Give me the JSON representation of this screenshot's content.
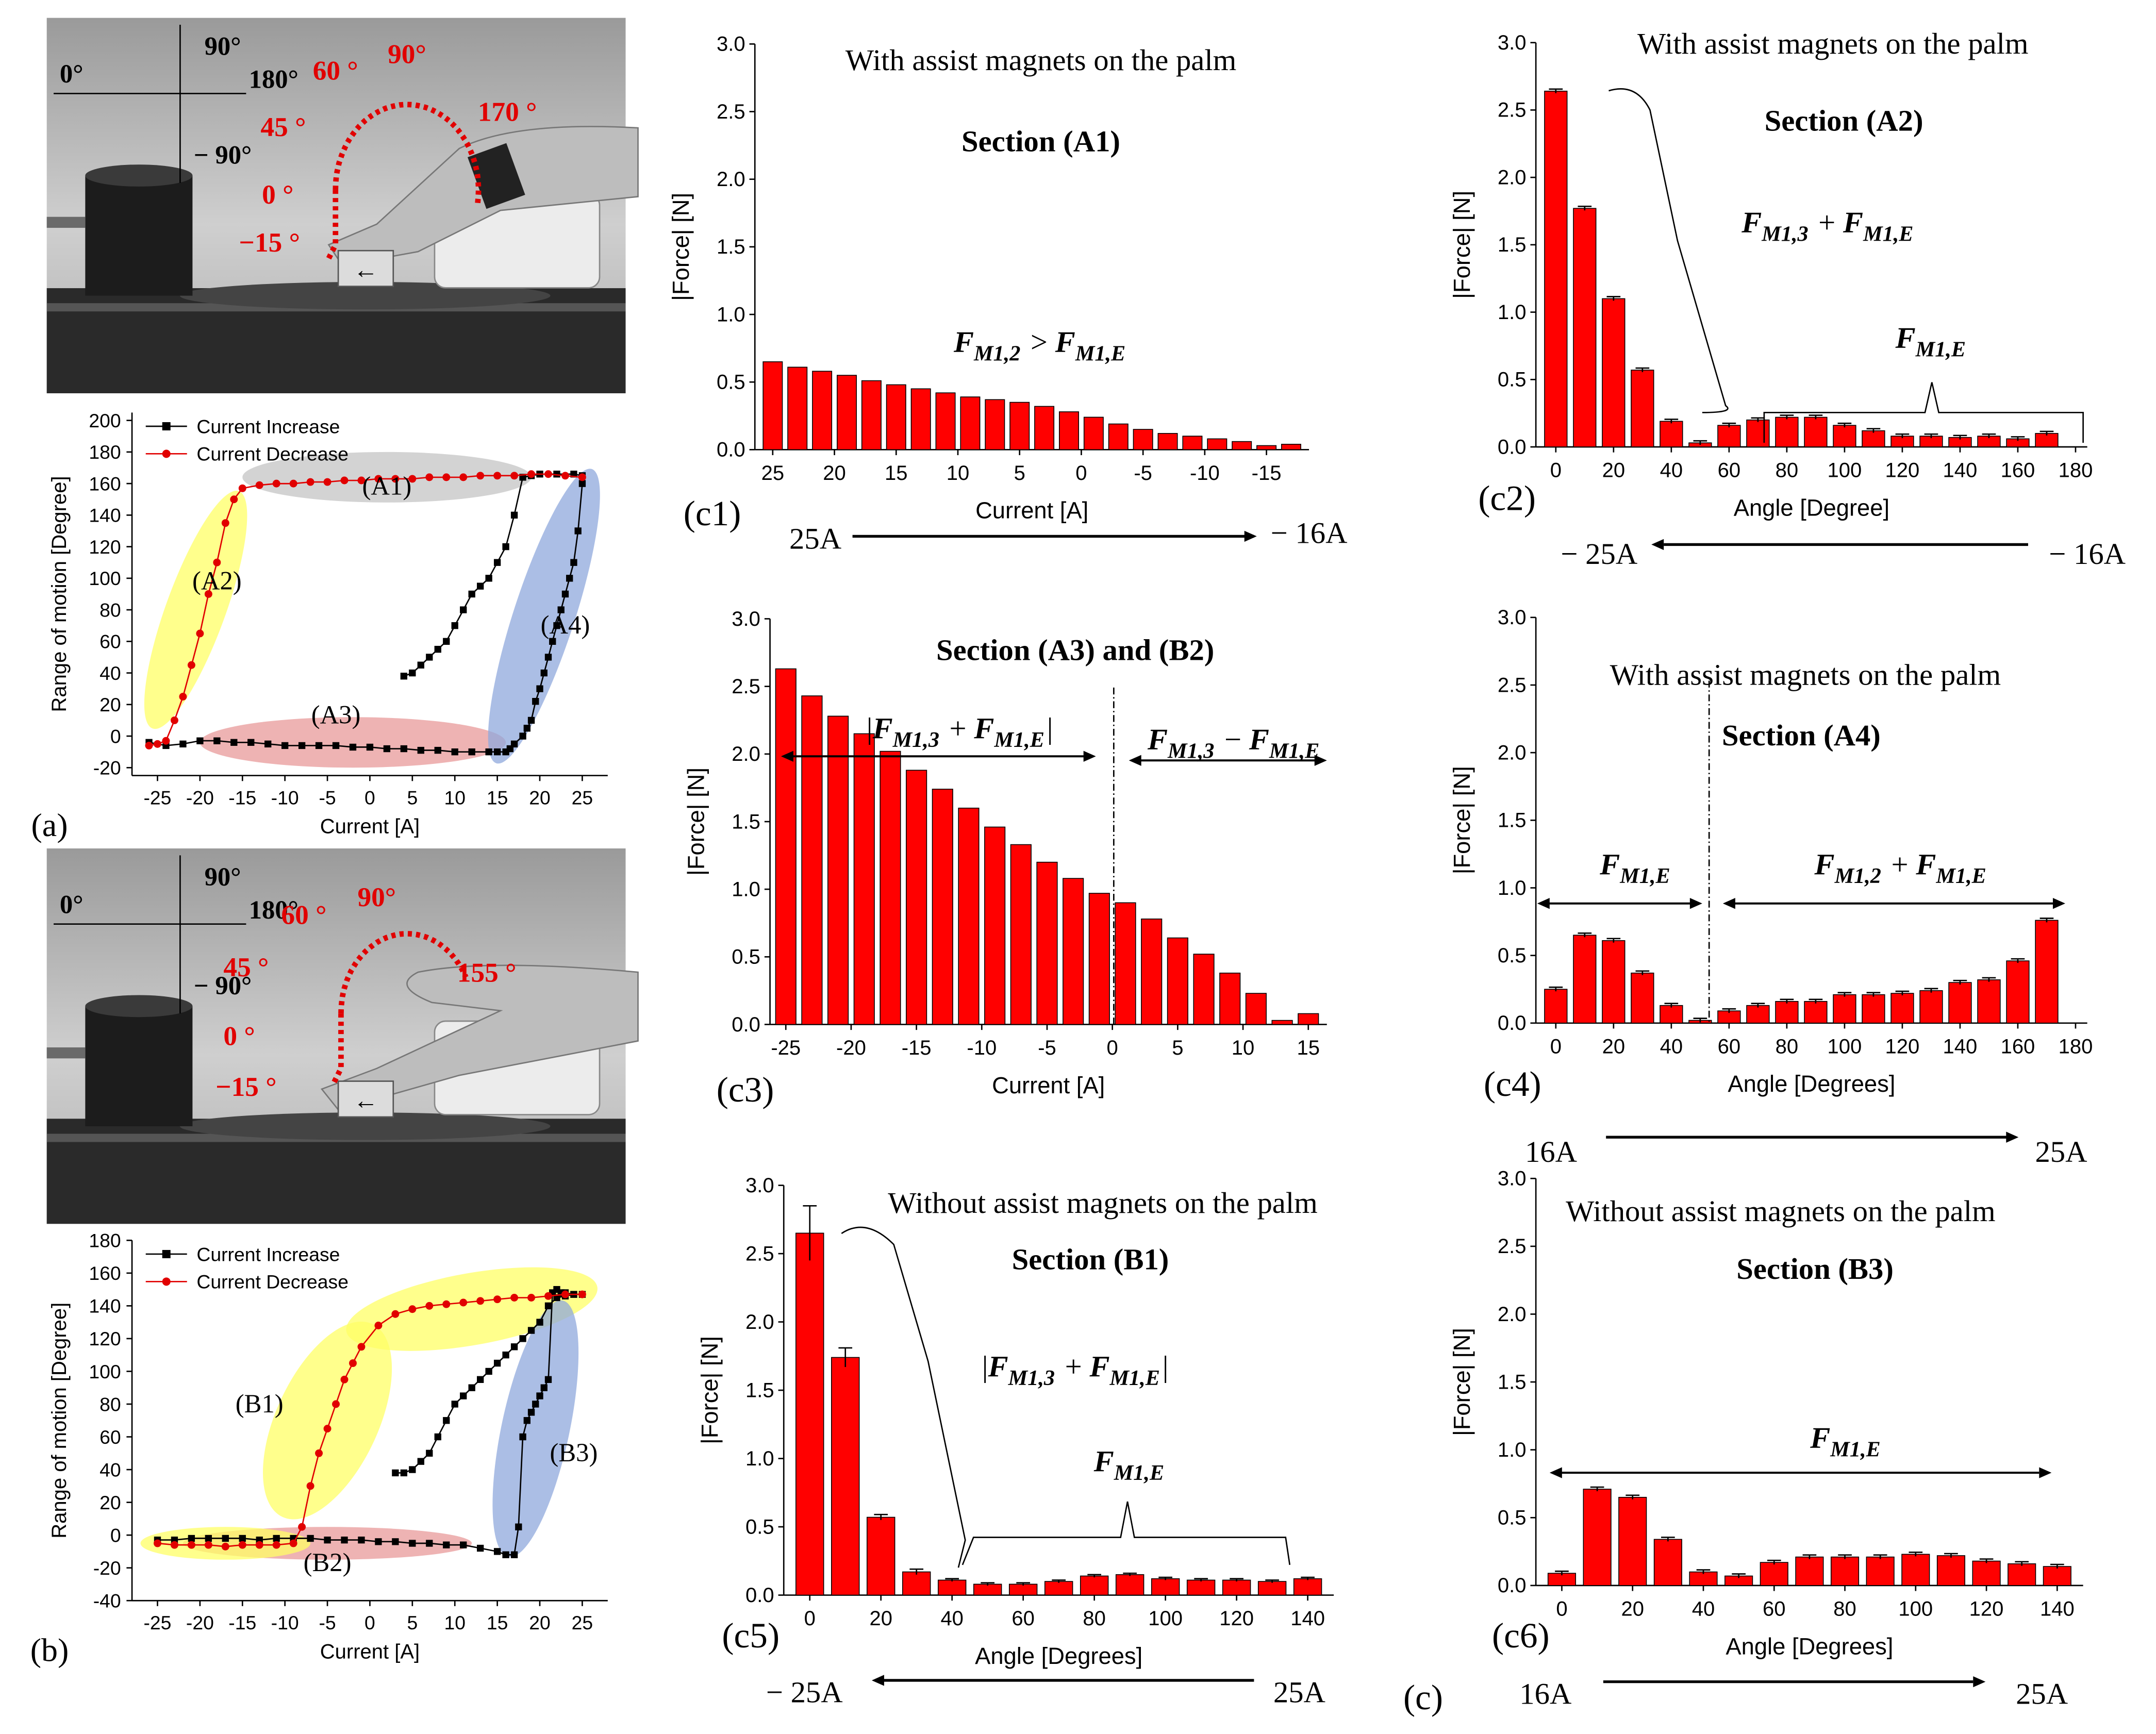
{
  "colors": {
    "bar": "#ff0000",
    "red": "#e10000",
    "black": "#000000",
    "yellow": "#ffff66",
    "blue": "#8fa8dc",
    "grey": "#c4c4c4",
    "pink": "#e89a9a"
  },
  "photos": {
    "a": {
      "labels": [
        "0°",
        "90°",
        "180°",
        "− 90°"
      ],
      "angles": [
        "60 °",
        "90°",
        "45 °",
        "170 °",
        "0 °",
        "−15 °"
      ]
    },
    "b": {
      "labels": [
        "0°",
        "90°",
        "180°",
        "− 90°"
      ],
      "angles": [
        "60 °",
        "90°",
        "45 °",
        "155 °",
        "0 °",
        "−15 °"
      ]
    }
  },
  "chart_data": [
    {
      "id": "a",
      "type": "line",
      "tag": "(a)",
      "xlabel": "Current [A]",
      "ylabel": "Range of motion [Degree]",
      "xlim": [
        -28,
        28
      ],
      "ylim": [
        -25,
        205
      ],
      "xticks": [
        -25,
        -20,
        -15,
        -10,
        -5,
        0,
        5,
        10,
        15,
        20,
        25
      ],
      "yticks": [
        -20,
        0,
        20,
        40,
        60,
        80,
        100,
        120,
        140,
        160,
        180,
        200
      ],
      "legend": [
        "Current Increase",
        "Current Decrease"
      ],
      "regions": [
        {
          "label": "(A1)",
          "color": "grey",
          "cx": 2,
          "cy": 164,
          "rx": 17,
          "ry": 16
        },
        {
          "label": "(A2)",
          "color": "yellow",
          "cx": -20.5,
          "cy": 80,
          "rx": 3.5,
          "ry": 80,
          "rot": 20
        },
        {
          "label": "(A3)",
          "color": "pink",
          "cx": -2,
          "cy": -4,
          "rx": 18,
          "ry": 16
        },
        {
          "label": "(A4)",
          "color": "blue",
          "cx": 20.5,
          "cy": 76,
          "rx": 3.6,
          "ry": 98,
          "rot": 18
        }
      ],
      "series": [
        {
          "name": "Current Increase",
          "x": [
            -26,
            -24,
            -22,
            -20,
            -18,
            -16,
            -14,
            -12,
            -10,
            -8,
            -6,
            -4,
            -2,
            0,
            2,
            4,
            6,
            8,
            10,
            12,
            14,
            15,
            16,
            16.5,
            17,
            18,
            18.5,
            19,
            19.5,
            20,
            20.5,
            21,
            21.5,
            22,
            22.5,
            23,
            23.5,
            24,
            24.5,
            25,
            25,
            24,
            22,
            20,
            19,
            18,
            17,
            16,
            15,
            14,
            13,
            12,
            11,
            10,
            9,
            8,
            7,
            6,
            5,
            4
          ],
          "y": [
            -4,
            -6,
            -5,
            -3,
            -3,
            -4,
            -4,
            -5,
            -6,
            -6,
            -6,
            -6,
            -7,
            -7,
            -8,
            -8,
            -9,
            -9,
            -10,
            -10,
            -10,
            -10,
            -10,
            -8,
            -5,
            0,
            5,
            10,
            22,
            30,
            40,
            50,
            60,
            70,
            80,
            90,
            100,
            110,
            130,
            160,
            165,
            166,
            166,
            166,
            165,
            164,
            140,
            120,
            110,
            100,
            95,
            90,
            80,
            70,
            60,
            55,
            50,
            45,
            40,
            38
          ]
        },
        {
          "name": "Current Decrease",
          "x": [
            25,
            23,
            21,
            19,
            17,
            15,
            13,
            11,
            9,
            7,
            5,
            3,
            1,
            -1,
            -3,
            -5,
            -7,
            -9,
            -11,
            -13,
            -15,
            -16,
            -17,
            -18,
            -19,
            -20,
            -21,
            -22,
            -23,
            -24,
            -25,
            -26
          ],
          "y": [
            164,
            165,
            166,
            166,
            165,
            165,
            165,
            164,
            164,
            164,
            163,
            163,
            163,
            162,
            162,
            161,
            161,
            160,
            160,
            159,
            157,
            150,
            135,
            110,
            90,
            65,
            45,
            25,
            10,
            -3,
            -5,
            -6
          ]
        }
      ]
    },
    {
      "id": "b",
      "type": "line",
      "tag": "(b)",
      "xlabel": "Current [A]",
      "ylabel": "Range of motion [Degree]",
      "xlim": [
        -28,
        28
      ],
      "ylim": [
        -40,
        180
      ],
      "xticks": [
        -25,
        -20,
        -15,
        -10,
        -5,
        0,
        5,
        10,
        15,
        20,
        25
      ],
      "yticks": [
        -40,
        -20,
        0,
        20,
        40,
        60,
        80,
        100,
        120,
        140,
        160,
        180
      ],
      "legend": [
        "Current Increase",
        "Current Decrease"
      ],
      "regions": [
        {
          "label": "(B1)",
          "color": "yellow",
          "cx": -5,
          "cy": 70,
          "rx": 6,
          "ry": 65,
          "rot": 25
        },
        {
          "label": "",
          "color": "yellow",
          "cx": 12,
          "cy": 138,
          "rx": 15,
          "ry": 22,
          "rot": -10
        },
        {
          "label": "(B2)",
          "color": "pink",
          "cx": -5,
          "cy": -5,
          "rx": 17,
          "ry": 10
        },
        {
          "label": "",
          "color": "yellow",
          "cx": -17,
          "cy": -5,
          "rx": 10,
          "ry": 10
        },
        {
          "label": "(B3)",
          "color": "blue",
          "cx": 19.5,
          "cy": 65,
          "rx": 4,
          "ry": 80,
          "rot": 12
        }
      ],
      "region_text": [
        {
          "t": "(B1)",
          "x": -13,
          "y": 75
        },
        {
          "t": "(B2)",
          "x": -5,
          "y": -22
        },
        {
          "t": "(B3)",
          "x": 24,
          "y": 45
        }
      ],
      "series": [
        {
          "name": "Current Increase",
          "x": [
            -25,
            -23,
            -21,
            -19,
            -17,
            -15,
            -13,
            -11,
            -9,
            -7,
            -5,
            -3,
            -1,
            1,
            3,
            5,
            7,
            9,
            11,
            13,
            15,
            16,
            17,
            17.5,
            18,
            18.5,
            19,
            19.5,
            20,
            20.5,
            21,
            21.5,
            22,
            22.5,
            23,
            24,
            25,
            24,
            23,
            22,
            21,
            20,
            19,
            18,
            17,
            16,
            15,
            14,
            13,
            12,
            11,
            10,
            9,
            8,
            7,
            6,
            5,
            4,
            3
          ],
          "y": [
            -3,
            -3,
            -2,
            -2,
            -2,
            -2,
            -3,
            -2,
            -2,
            -2,
            -3,
            -3,
            -3,
            -4,
            -4,
            -5,
            -5,
            -6,
            -6,
            -8,
            -10,
            -12,
            -12,
            5,
            60,
            70,
            75,
            80,
            85,
            90,
            95,
            148,
            150,
            148,
            148,
            147,
            147,
            147,
            146,
            145,
            140,
            130,
            125,
            120,
            115,
            110,
            105,
            100,
            95,
            90,
            85,
            80,
            70,
            60,
            50,
            45,
            40,
            38,
            38
          ]
        },
        {
          "name": "Current Decrease",
          "x": [
            25,
            23,
            21,
            19,
            17,
            15,
            13,
            11,
            9,
            7,
            5,
            3,
            1,
            -1,
            -2,
            -3,
            -4,
            -5,
            -6,
            -7,
            -8,
            -9,
            -11,
            -13,
            -15,
            -17,
            -19,
            -21,
            -23,
            -25
          ],
          "y": [
            147,
            147,
            146,
            145,
            145,
            144,
            143,
            142,
            141,
            140,
            138,
            135,
            128,
            115,
            105,
            95,
            80,
            65,
            50,
            30,
            5,
            -5,
            -6,
            -6,
            -6,
            -7,
            -6,
            -6,
            -6,
            -5
          ]
        }
      ]
    },
    {
      "id": "c1",
      "type": "bar",
      "tag": "(c1)",
      "title": "With assist magnets on the palm",
      "section": "Section (A1)",
      "xlabel": "Current [A]",
      "ylabel": "|Force| [N]",
      "ylim": [
        0,
        3
      ],
      "yticks": [
        0,
        0.5,
        1,
        1.5,
        2,
        2.5,
        3
      ],
      "categories": [
        25,
        23,
        21,
        19,
        17,
        15,
        13,
        11,
        9,
        7,
        5,
        3,
        1,
        -1,
        -3,
        -5,
        -7,
        -9,
        -11,
        -13,
        -15,
        -17
      ],
      "values": [
        0.65,
        0.61,
        0.58,
        0.55,
        0.51,
        0.48,
        0.45,
        0.42,
        0.39,
        0.37,
        0.35,
        0.32,
        0.28,
        0.24,
        0.19,
        0.15,
        0.12,
        0.1,
        0.08,
        0.06,
        0.03,
        0.04
      ],
      "xticks": [
        {
          "v": 25,
          "i": 0
        },
        {
          "v": 20,
          "i": 2.5
        },
        {
          "v": 15,
          "i": 5
        },
        {
          "v": 10,
          "i": 7.5
        },
        {
          "v": 5,
          "i": 10
        },
        {
          "v": 0,
          "i": 12.5
        },
        {
          "v": -5,
          "i": 15
        },
        {
          "v": -10,
          "i": 17.5
        },
        {
          "v": -15,
          "i": 20
        }
      ],
      "annotations": [
        "F_{M1,2} > F_{M1,E}"
      ],
      "arrow": {
        "left": "25A",
        "right": "− 16A",
        "dir": "right"
      }
    },
    {
      "id": "c2",
      "type": "bar",
      "tag": "(c2)",
      "title": "With assist magnets on the palm",
      "section": "Section (A2)",
      "xlabel": "Angle [Degree]",
      "ylabel": "|Force| [N]",
      "ylim": [
        0,
        3
      ],
      "yticks": [
        0,
        0.5,
        1,
        1.5,
        2,
        2.5,
        3
      ],
      "categories": [
        0,
        10,
        20,
        30,
        40,
        50,
        60,
        70,
        80,
        90,
        100,
        110,
        120,
        130,
        140,
        150,
        160,
        170
      ],
      "values": [
        2.64,
        1.77,
        1.1,
        0.57,
        0.19,
        0.03,
        0.16,
        0.2,
        0.22,
        0.22,
        0.16,
        0.12,
        0.08,
        0.08,
        0.07,
        0.08,
        0.06,
        0.1
      ],
      "xticks": [
        0,
        20,
        40,
        60,
        80,
        100,
        120,
        140,
        160,
        180
      ],
      "annotations": [
        "F_{M1,3} + F_{M1,E}",
        "F_{M1,E}"
      ],
      "arrow": {
        "left": "− 25A",
        "right": "− 16A",
        "dir": "left"
      }
    },
    {
      "id": "c3",
      "type": "bar",
      "tag": "(c3)",
      "section": "Section (A3) and (B2)",
      "xlabel": "Current [A]",
      "ylabel": "|Force| [N]",
      "ylim": [
        0,
        3
      ],
      "yticks": [
        0,
        0.5,
        1,
        1.5,
        2,
        2.5,
        3
      ],
      "categories": [
        -25,
        -23,
        -21,
        -19,
        -17,
        -15,
        -13,
        -11,
        -9,
        -7,
        -5,
        -3,
        -1,
        1,
        3,
        5,
        7,
        9,
        11,
        13,
        15
      ],
      "values": [
        2.63,
        2.43,
        2.28,
        2.15,
        2.02,
        1.88,
        1.74,
        1.6,
        1.46,
        1.33,
        1.2,
        1.08,
        0.97,
        0.9,
        0.78,
        0.64,
        0.52,
        0.38,
        0.23,
        0.03,
        0.08
      ],
      "xticks": [
        -25,
        -20,
        -15,
        -10,
        -5,
        0,
        5,
        10,
        15
      ],
      "annotations": [
        "|F_{M1,3} + F_{M1,E}|",
        "F_{M1,3} − F_{M1,E}"
      ]
    },
    {
      "id": "c4",
      "type": "bar",
      "tag": "(c4)",
      "title": "With assist magnets on the palm",
      "section": "Section (A4)",
      "xlabel": "Angle [Degrees]",
      "ylabel": "|Force| [N]",
      "ylim": [
        0,
        3
      ],
      "yticks": [
        0,
        0.5,
        1,
        1.5,
        2,
        2.5,
        3
      ],
      "categories": [
        0,
        10,
        20,
        30,
        40,
        50,
        60,
        70,
        80,
        90,
        100,
        110,
        120,
        130,
        140,
        150,
        160,
        170
      ],
      "values": [
        0.25,
        0.65,
        0.61,
        0.37,
        0.13,
        0.02,
        0.09,
        0.13,
        0.16,
        0.16,
        0.21,
        0.21,
        0.22,
        0.24,
        0.3,
        0.32,
        0.46,
        0.76
      ],
      "xticks": [
        0,
        20,
        40,
        60,
        80,
        100,
        120,
        140,
        160,
        180
      ],
      "annotations": [
        "F_{M1,E}",
        "F_{M1,2} + F_{M1,E}"
      ],
      "arrow": {
        "left": "16A",
        "right": "25A",
        "dir": "right"
      }
    },
    {
      "id": "c5",
      "type": "bar",
      "tag": "(c5)",
      "title": "Without assist magnets on the palm",
      "section": "Section (B1)",
      "xlabel": "Angle [Degrees]",
      "ylabel": "|Force| [N]",
      "ylim": [
        0,
        3
      ],
      "yticks": [
        0,
        0.5,
        1,
        1.5,
        2,
        2.5,
        3
      ],
      "categories": [
        0,
        10,
        20,
        30,
        40,
        50,
        60,
        70,
        80,
        90,
        100,
        110,
        120,
        130,
        140
      ],
      "values": [
        2.65,
        1.74,
        0.57,
        0.17,
        0.11,
        0.08,
        0.08,
        0.1,
        0.14,
        0.15,
        0.12,
        0.11,
        0.11,
        0.1,
        0.12
      ],
      "errors": [
        0.2,
        0.07,
        0.02,
        0.02,
        0.01,
        0.01,
        0.01,
        0.01,
        0.01,
        0.01,
        0.01,
        0.01,
        0.01,
        0.01,
        0.01
      ],
      "xticks": [
        0,
        20,
        40,
        60,
        80,
        100,
        120,
        140
      ],
      "annotations": [
        "|F_{M1,3} + F_{M1,E}|",
        "F_{M1,E}"
      ],
      "arrow": {
        "left": "− 25A",
        "right": "25A",
        "dir": "left"
      }
    },
    {
      "id": "c6",
      "type": "bar",
      "tag": "(c6)",
      "title": "Without assist magnets on the palm",
      "section": "Section (B3)",
      "xlabel": "Angle [Degrees]",
      "ylabel": "|Force| [N]",
      "ylim": [
        0,
        3
      ],
      "yticks": [
        0,
        0.5,
        1,
        1.5,
        2,
        2.5,
        3
      ],
      "categories": [
        0,
        10,
        20,
        30,
        40,
        50,
        60,
        70,
        80,
        90,
        100,
        110,
        120,
        130,
        140
      ],
      "values": [
        0.09,
        0.71,
        0.65,
        0.34,
        0.1,
        0.07,
        0.17,
        0.21,
        0.21,
        0.21,
        0.23,
        0.22,
        0.18,
        0.16,
        0.14
      ],
      "xticks": [
        0,
        20,
        40,
        60,
        80,
        100,
        120,
        140
      ],
      "annotations": [
        "F_{M1,E}"
      ],
      "arrow": {
        "left": "16A",
        "right": "25A",
        "dir": "right"
      }
    }
  ],
  "figure_tag": "(c)"
}
